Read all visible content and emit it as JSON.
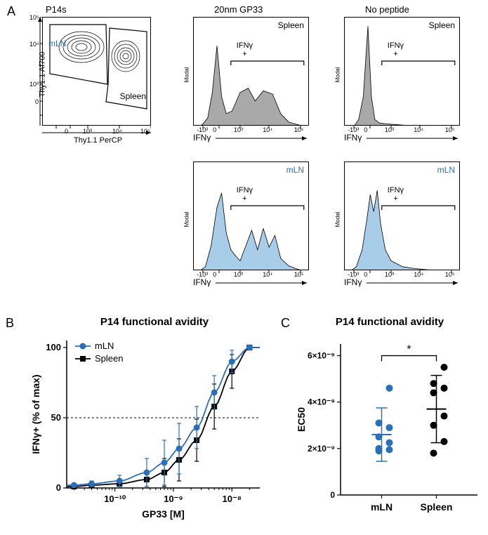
{
  "panelA": {
    "label": "A",
    "contour": {
      "title": "P14s",
      "xlabel": "Thy1.1 PerCP",
      "ylabel": "Thy1.1 Af700",
      "mLN_label": "mLN",
      "spleen_label": "Spleen",
      "mLN_color": "#2b6fb8",
      "spleen_color": "#000000",
      "x_ticks": [
        "-10³",
        "0",
        "10³",
        "10⁴",
        "10⁵"
      ],
      "y_ticks": [
        "-10³",
        "0",
        "10³",
        "10⁴",
        "10⁵"
      ]
    },
    "histograms": [
      {
        "col_title": "20nm GP33",
        "cell_label": "Spleen",
        "fill": "#a9a9a9",
        "gate_label": "IFNγ\n+",
        "xlabel": "IFNγ",
        "ylabel": "Modal",
        "x_ticks": [
          "-10³",
          "0",
          "10³",
          "10⁴",
          "10⁵"
        ],
        "shape": [
          [
            0.05,
            0
          ],
          [
            0.08,
            0.03
          ],
          [
            0.12,
            0.1
          ],
          [
            0.16,
            0.4
          ],
          [
            0.2,
            0.95
          ],
          [
            0.24,
            0.35
          ],
          [
            0.28,
            0.15
          ],
          [
            0.33,
            0.18
          ],
          [
            0.4,
            0.4
          ],
          [
            0.47,
            0.45
          ],
          [
            0.53,
            0.3
          ],
          [
            0.6,
            0.42
          ],
          [
            0.68,
            0.38
          ],
          [
            0.75,
            0.15
          ],
          [
            0.82,
            0.05
          ],
          [
            0.9,
            0.02
          ],
          [
            0.95,
            0
          ]
        ]
      },
      {
        "col_title": "No peptide",
        "cell_label": "Spleen",
        "fill": "#a9a9a9",
        "gate_label": "IFNγ\n+",
        "xlabel": "IFNγ",
        "ylabel": "Modal",
        "x_ticks": [
          "-10³",
          "0",
          "10³",
          "10⁴",
          "10⁵"
        ],
        "shape": [
          [
            0.08,
            0
          ],
          [
            0.12,
            0.08
          ],
          [
            0.16,
            0.35
          ],
          [
            0.2,
            1.18
          ],
          [
            0.23,
            0.35
          ],
          [
            0.26,
            0.08
          ],
          [
            0.3,
            0.04
          ],
          [
            0.36,
            0.03
          ],
          [
            0.45,
            0.02
          ],
          [
            0.55,
            0.01
          ],
          [
            0.7,
            0.005
          ],
          [
            0.9,
            0
          ],
          [
            0.95,
            0
          ]
        ]
      },
      {
        "col_title": "",
        "cell_label": "mLN",
        "cell_label_color": "#2b6fb8",
        "fill": "#a7cde9",
        "gate_label": "IFNγ\n+",
        "xlabel": "IFNγ",
        "ylabel": "Modal",
        "x_ticks": [
          "-10³",
          "0",
          "10³",
          "10⁴",
          "10⁵"
        ],
        "shape": [
          [
            0.05,
            0
          ],
          [
            0.1,
            0.05
          ],
          [
            0.15,
            0.3
          ],
          [
            0.2,
            0.75
          ],
          [
            0.24,
            0.92
          ],
          [
            0.28,
            0.45
          ],
          [
            0.32,
            0.25
          ],
          [
            0.36,
            0.18
          ],
          [
            0.4,
            0.12
          ],
          [
            0.45,
            0.3
          ],
          [
            0.5,
            0.48
          ],
          [
            0.55,
            0.25
          ],
          [
            0.6,
            0.5
          ],
          [
            0.65,
            0.28
          ],
          [
            0.7,
            0.42
          ],
          [
            0.75,
            0.15
          ],
          [
            0.82,
            0.06
          ],
          [
            0.9,
            0.02
          ],
          [
            0.95,
            0
          ]
        ]
      },
      {
        "col_title": "",
        "cell_label": "mLN",
        "cell_label_color": "#2b6fb8",
        "fill": "#a7cde9",
        "gate_label": "IFNγ\n+",
        "xlabel": "IFNγ",
        "ylabel": "Modal",
        "x_ticks": [
          "-10³",
          "0",
          "10³",
          "10⁴",
          "10⁵"
        ],
        "shape": [
          [
            0.05,
            0
          ],
          [
            0.1,
            0.05
          ],
          [
            0.15,
            0.25
          ],
          [
            0.19,
            0.6
          ],
          [
            0.22,
            0.9
          ],
          [
            0.25,
            0.7
          ],
          [
            0.28,
            0.95
          ],
          [
            0.31,
            0.55
          ],
          [
            0.35,
            0.25
          ],
          [
            0.4,
            0.12
          ],
          [
            0.5,
            0.05
          ],
          [
            0.6,
            0.03
          ],
          [
            0.75,
            0.01
          ],
          [
            0.9,
            0
          ],
          [
            0.95,
            0
          ]
        ]
      }
    ]
  },
  "panelB": {
    "label": "B",
    "title": "P14 functional avidity",
    "xlabel": "GP33 [M]",
    "ylabel": "IFNγ+ (% of max)",
    "legend": [
      {
        "label": "mLN",
        "color": "#2b6fb8",
        "marker": "circle"
      },
      {
        "label": "Spleen",
        "color": "#000000",
        "marker": "square"
      }
    ],
    "x_ticks": [
      "10⁻¹⁰",
      "10⁻⁹",
      "10⁻⁸"
    ],
    "y_ticks": [
      0,
      50,
      100
    ],
    "ref_line_y": 50,
    "series": {
      "mLN": {
        "color": "#2b6fb8",
        "points": [
          {
            "x": 2e-11,
            "y": 2,
            "err": 1
          },
          {
            "x": 4e-11,
            "y": 3,
            "err": 2
          },
          {
            "x": 1.2e-10,
            "y": 5,
            "err": 4
          },
          {
            "x": 3.5e-10,
            "y": 11,
            "err": 10
          },
          {
            "x": 7e-10,
            "y": 18,
            "err": 16
          },
          {
            "x": 1.25e-09,
            "y": 28,
            "err": 18
          },
          {
            "x": 2.5e-09,
            "y": 43,
            "err": 15
          },
          {
            "x": 5e-09,
            "y": 68,
            "err": 12
          },
          {
            "x": 1e-08,
            "y": 90,
            "err": 8
          },
          {
            "x": 2e-08,
            "y": 100,
            "err": 0
          }
        ]
      },
      "Spleen": {
        "color": "#000000",
        "points": [
          {
            "x": 2e-11,
            "y": 1,
            "err": 1
          },
          {
            "x": 4e-11,
            "y": 2,
            "err": 1
          },
          {
            "x": 1.2e-10,
            "y": 3,
            "err": 2
          },
          {
            "x": 3.5e-10,
            "y": 6,
            "err": 5
          },
          {
            "x": 7e-10,
            "y": 11,
            "err": 10
          },
          {
            "x": 1.25e-09,
            "y": 20,
            "err": 15
          },
          {
            "x": 2.5e-09,
            "y": 34,
            "err": 15
          },
          {
            "x": 5e-09,
            "y": 58,
            "err": 16
          },
          {
            "x": 1e-08,
            "y": 83,
            "err": 12
          },
          {
            "x": 2e-08,
            "y": 100,
            "err": 0
          }
        ]
      }
    },
    "xlim": [
      1.5e-11,
      3e-08
    ],
    "ylim": [
      0,
      105
    ]
  },
  "panelC": {
    "label": "C",
    "title": "P14 functional avidity",
    "ylabel": "EC50",
    "x_categories": [
      "mLN",
      "Spleen"
    ],
    "sig_label": "*",
    "ylim": [
      0,
      6.5e-09
    ],
    "y_ticks": [
      "0",
      "2×10⁻⁹",
      "4×10⁻⁹",
      "6×10⁻⁹"
    ],
    "y_tick_vals": [
      0,
      2e-09,
      4e-09,
      6e-09
    ],
    "groups": {
      "mLN": {
        "color": "#2b6fb8",
        "mean": 2.6e-09,
        "sd": 1.15e-09,
        "points": [
          1.9e-09,
          1.95e-09,
          2e-09,
          2.25e-09,
          2.5e-09,
          2.9e-09,
          3.1e-09,
          4.6e-09
        ]
      },
      "Spleen": {
        "color": "#000000",
        "mean": 3.7e-09,
        "sd": 1.45e-09,
        "points": [
          1.8e-09,
          2.3e-09,
          3e-09,
          3.4e-09,
          4.4e-09,
          4.6e-09,
          4.8e-09,
          5.5e-09
        ]
      }
    }
  }
}
